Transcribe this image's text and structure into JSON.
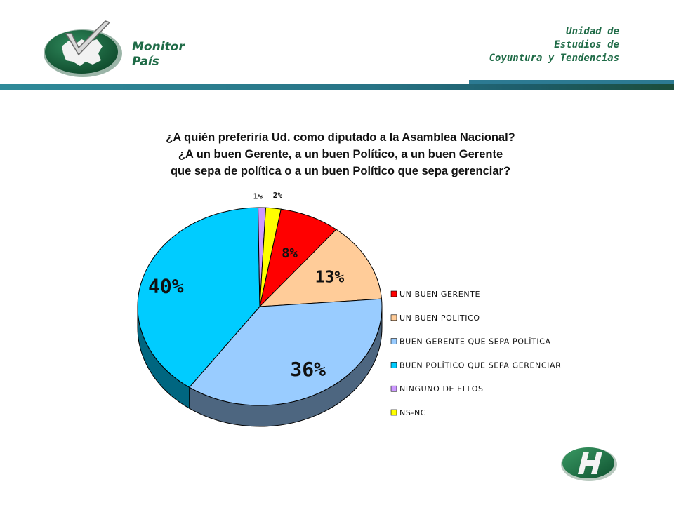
{
  "header": {
    "brand_line1": "Monitor",
    "brand_line2": "País",
    "unit_line1": "Unidad de",
    "unit_line2": "Estudios de",
    "unit_line3": "Coyuntura y Tendencias"
  },
  "colors": {
    "brand_green": "#1f6b47",
    "header_bar": "#287486"
  },
  "icons": {
    "left_logo": "monitor-pais-map-check-icon",
    "right_logo": "hinterlaces-h-icon"
  },
  "chart_data": {
    "type": "pie",
    "title_lines": [
      "¿A quién preferiría Ud. como diputado a la Asamblea Nacional?",
      "¿A un buen Gerente, a un buen Político, a un buen Gerente",
      "que sepa de política o a un buen Político que sepa gerenciar?"
    ],
    "legend_position": "right",
    "slices": [
      {
        "label": "UN BUEN GERENTE",
        "value": 8,
        "display": "8%",
        "color": "#ff0000"
      },
      {
        "label": "UN BUEN POLÍTICO",
        "value": 13,
        "display": "13%",
        "color": "#ffcc99"
      },
      {
        "label": "BUEN GERENTE QUE SEPA POLÍTICA",
        "value": 36,
        "display": "36%",
        "color": "#99ccff"
      },
      {
        "label": "BUEN POLÍTICO QUE SEPA GERENCIAR",
        "value": 40,
        "display": "40%",
        "color": "#00ccff"
      },
      {
        "label": "NINGUNO DE ELLOS",
        "value": 1,
        "display": "1%",
        "color": "#cc99ff"
      },
      {
        "label": "NS-NC",
        "value": 2,
        "display": "2%",
        "color": "#ffff00"
      }
    ]
  }
}
